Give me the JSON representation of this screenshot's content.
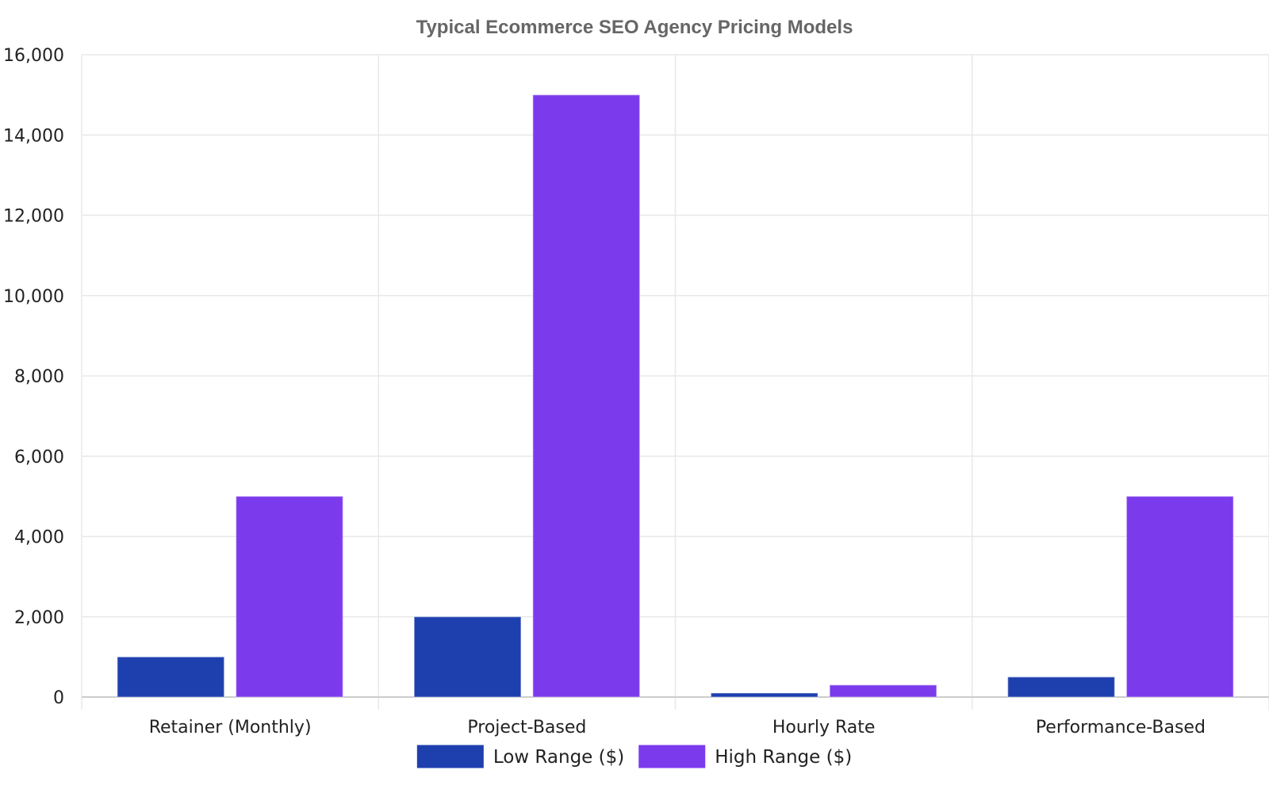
{
  "chart_data": {
    "type": "bar",
    "title": "Typical Ecommerce SEO Agency Pricing Models",
    "xlabel": "",
    "ylabel": "",
    "categories": [
      "Retainer (Monthly)",
      "Project-Based",
      "Hourly Rate",
      "Performance-Based"
    ],
    "series": [
      {
        "name": "Low Range ($)",
        "values": [
          1000,
          2000,
          100,
          500
        ],
        "color": "#1e40af"
      },
      {
        "name": "High Range ($)",
        "values": [
          5000,
          15000,
          300,
          5000
        ],
        "color": "#7c3aed"
      }
    ],
    "ylim": [
      0,
      16000
    ],
    "yticks": [
      0,
      2000,
      4000,
      6000,
      8000,
      10000,
      12000,
      14000,
      16000
    ],
    "ytick_labels": [
      "0",
      "2,000",
      "4,000",
      "6,000",
      "8,000",
      "10,000",
      "12,000",
      "14,000",
      "16,000"
    ],
    "grid": true,
    "legend_position": "bottom-center"
  }
}
